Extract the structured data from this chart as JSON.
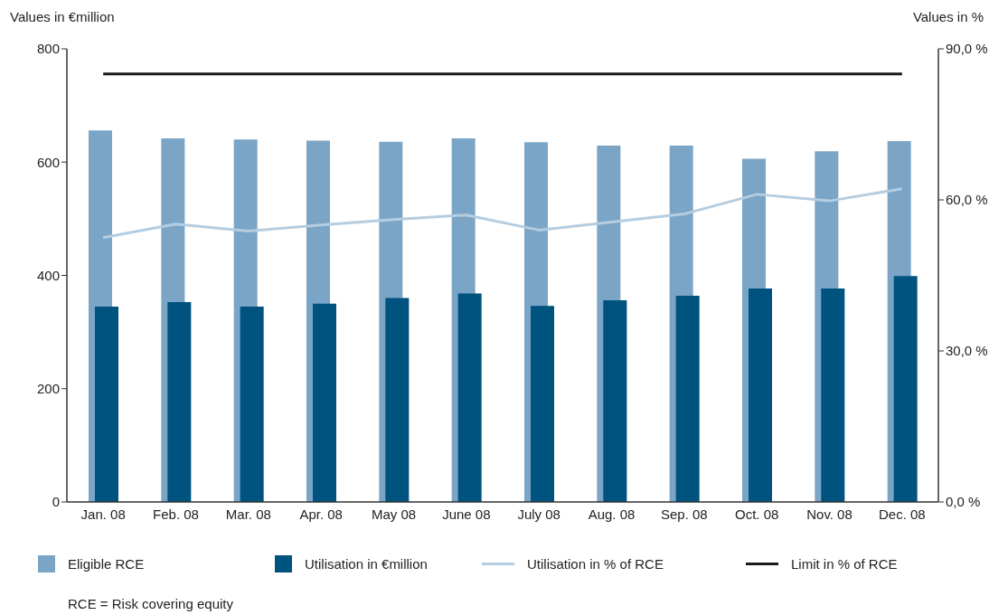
{
  "chart_data": {
    "type": "bar",
    "categories": [
      "Jan. 08",
      "Feb. 08",
      "Mar. 08",
      "Apr. 08",
      "May 08",
      "June 08",
      "July 08",
      "Aug. 08",
      "Sep. 08",
      "Oct. 08",
      "Nov. 08",
      "Dec. 08"
    ],
    "ylabel": "Values in €million",
    "y2label": "Values in %",
    "ylim": [
      0,
      800
    ],
    "yticks": [
      0,
      200,
      400,
      600,
      800
    ],
    "y2lim": [
      0,
      90
    ],
    "y2ticks": [
      {
        "value": 0,
        "label": "0,0 %"
      },
      {
        "value": 30,
        "label": "30,0 %"
      },
      {
        "value": 60,
        "label": "60,0 %"
      },
      {
        "value": 90,
        "label": "90,0 %"
      }
    ],
    "series": [
      {
        "name": "Eligible RCE",
        "color": "#7aa5c6",
        "values": [
          656,
          642,
          640,
          638,
          636,
          642,
          635,
          629,
          629,
          606,
          619,
          637
        ]
      },
      {
        "name": "Utilisation in €million",
        "color": "#00527f",
        "values": [
          345,
          353,
          345,
          350,
          360,
          368,
          346,
          356,
          364,
          377,
          377,
          399
        ]
      },
      {
        "name": "Utilisation in % of RCE",
        "type": "line",
        "axis": "y2",
        "color": "#b5cde0",
        "values": [
          52.5,
          55.2,
          53.8,
          55.0,
          56.1,
          57.0,
          54.0,
          55.6,
          57.2,
          61.1,
          59.8,
          62.2
        ]
      },
      {
        "name": "Limit in % of RCE",
        "type": "line",
        "axis": "y2",
        "color": "#1a1a1a",
        "values": [
          85,
          85,
          85,
          85,
          85,
          85,
          85,
          85,
          85,
          85,
          85,
          85
        ]
      }
    ],
    "legend": "bottom",
    "marker": "none",
    "line_style": "solid",
    "annotations": [
      "RCE = Risk covering equity"
    ]
  }
}
